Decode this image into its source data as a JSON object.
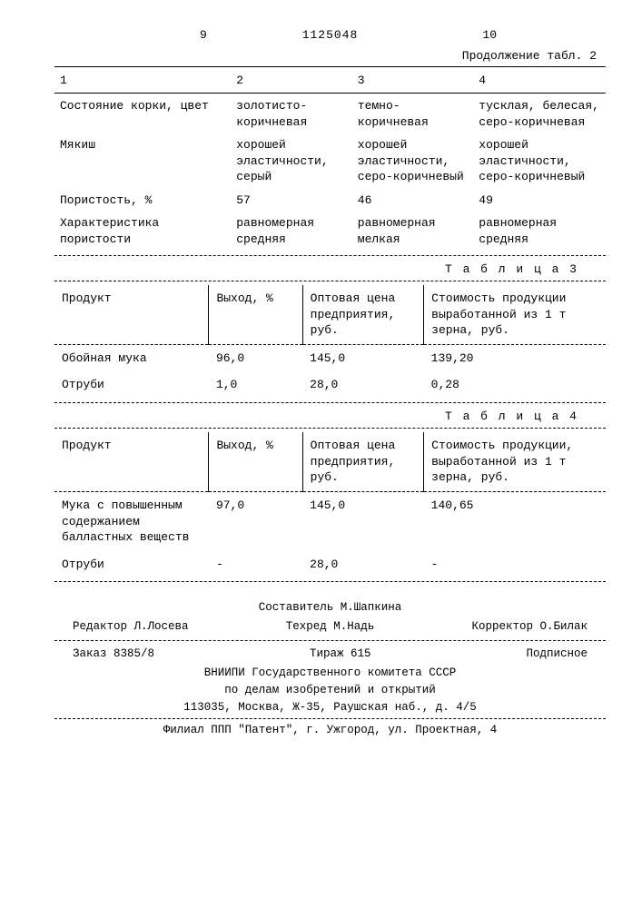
{
  "header": {
    "left_page": "9",
    "right_page": "10",
    "doc_number": "1125048",
    "continuation": "Продолжение табл. 2"
  },
  "table2": {
    "col_labels": [
      "1",
      "2",
      "3",
      "4"
    ],
    "rows": [
      {
        "label": "Состояние корки, цвет",
        "v2": "золотисто-коричневая",
        "v3": "темно-коричневая",
        "v4": "тусклая, белесая, серо-коричневая"
      },
      {
        "label": "Мякиш",
        "v2": "хорошей эластичности, серый",
        "v3": "хорошей эластичности, серо-коричневый",
        "v4": "хорошей эластичности, серо-коричневый"
      },
      {
        "label": "Пористость, %",
        "v2": "57",
        "v3": "46",
        "v4": "49"
      },
      {
        "label": "Характеристика пористости",
        "v2": "равномерная средняя",
        "v3": "равномерная мелкая",
        "v4": "равномерная средняя"
      }
    ]
  },
  "table3": {
    "title": "Т а б л и ц а  3",
    "headers": {
      "c1": "Продукт",
      "c2": "Выход, %",
      "c3": "Оптовая цена предприятия, руб.",
      "c4": "Стоимость продукции выработанной из 1 т зерна, руб."
    },
    "rows": [
      {
        "c1": "Обойная мука",
        "c2": "96,0",
        "c3": "145,0",
        "c4": "139,20"
      },
      {
        "c1": "Отруби",
        "c2": "1,0",
        "c3": "28,0",
        "c4": "0,28"
      }
    ]
  },
  "table4": {
    "title": "Т а б л и ц а  4",
    "headers": {
      "c1": "Продукт",
      "c2": "Выход, %",
      "c3": "Оптовая цена предприятия, руб.",
      "c4": "Стоимость продукции, выработанной из 1 т зерна, руб."
    },
    "rows": [
      {
        "c1": "Мука с повышенным содержанием балластных веществ",
        "c2": "97,0",
        "c3": "145,0",
        "c4": "140,65"
      },
      {
        "c1": "Отруби",
        "c2": "-",
        "c3": "28,0",
        "c4": "-"
      }
    ]
  },
  "footer": {
    "compiler": "Составитель М.Шапкина",
    "editor": "Редактор Л.Лосева",
    "techred": "Техред М.Надь",
    "corrector": "Корректор О.Билак",
    "order": "Заказ 8385/8",
    "tirage": "Тираж 615",
    "subscr": "Подписное",
    "org1": "ВНИИПИ Государственного комитета СССР",
    "org2": "по делам изобретений и открытий",
    "addr1": "113035, Москва, Ж-35, Раушская наб., д. 4/5",
    "branch": "Филиал ППП \"Патент\", г. Ужгород, ул. Проектная, 4"
  }
}
